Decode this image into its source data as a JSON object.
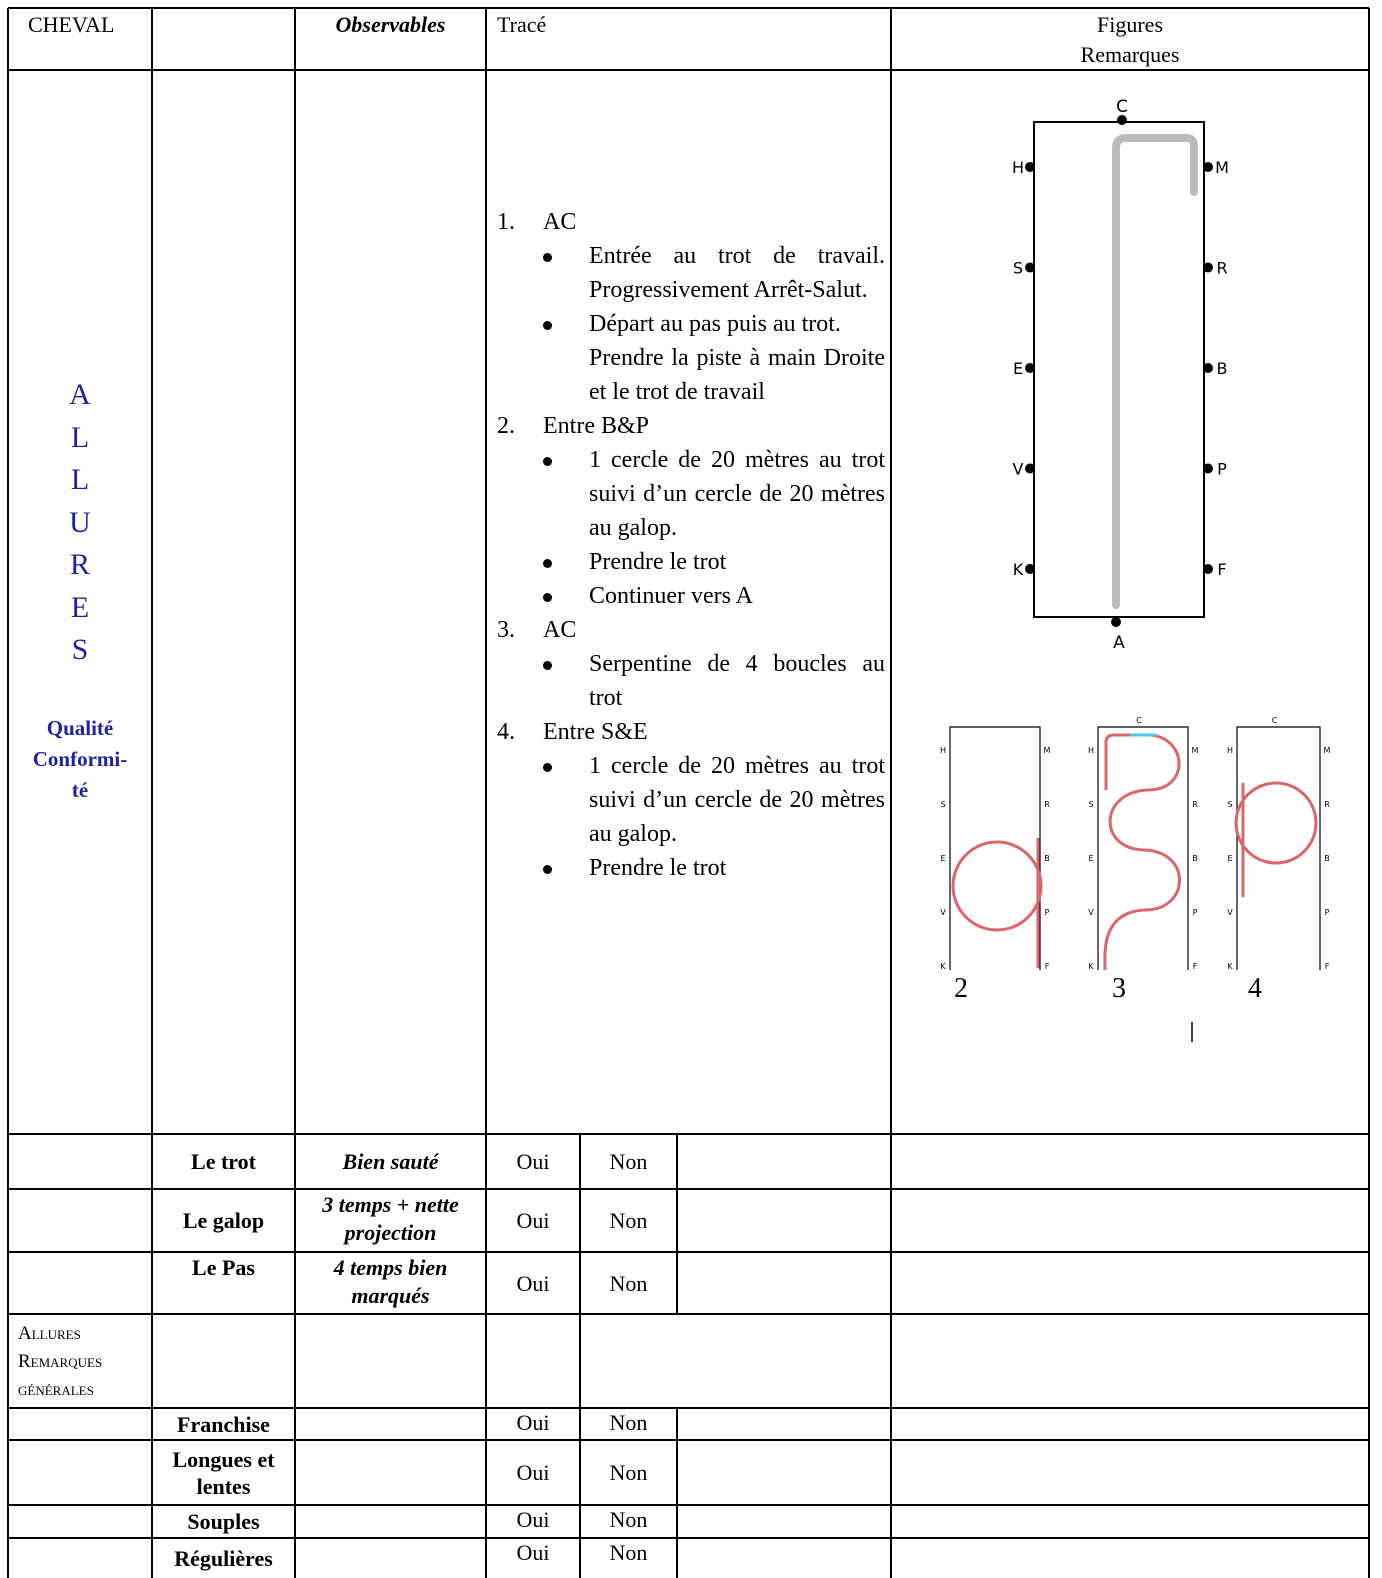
{
  "header": {
    "cheval": "CHEVAL",
    "observables": "Observables",
    "trace": "Tracé",
    "figures": "Figures",
    "remarques": "Remarques"
  },
  "side": {
    "letters": [
      "A",
      "L",
      "L",
      "U",
      "R",
      "E",
      "S"
    ],
    "subtitle": [
      "Qualité",
      "Conformi-",
      "té"
    ]
  },
  "instructions": [
    {
      "num": "1.",
      "title": "AC",
      "bullets": [
        "Entrée au trot de travail. Progressivement Arrêt-Salut.",
        "Départ au pas puis au trot.\nPrendre la piste à main Droite et le trot de travail"
      ]
    },
    {
      "num": "2.",
      "title": "Entre B&P",
      "bullets": [
        "1 cercle de 20 mètres au trot suivi d’un cercle de 20 mètres au galop.",
        "Prendre le trot",
        "Continuer vers A"
      ]
    },
    {
      "num": "3.",
      "title": "AC",
      "bullets": [
        "Serpentine de 4 boucles au trot"
      ]
    },
    {
      "num": "4.",
      "title": "Entre S&E",
      "bullets": [
        "1 cercle de 20 mètres au trot suivi d’un cercle de 20 mètres au galop.",
        "Prendre le trot"
      ]
    }
  ],
  "arena": {
    "top": "C",
    "bottom": "A",
    "left": [
      "H",
      "S",
      "E",
      "V",
      "K"
    ],
    "right": [
      "M",
      "R",
      "B",
      "P",
      "F"
    ]
  },
  "figures": [
    "2",
    "3",
    "4"
  ],
  "rows": [
    {
      "criterion": "Le trot",
      "observable": "Bien sauté",
      "yes": "Oui",
      "no": "Non"
    },
    {
      "criterion": "Le galop",
      "observable": "3 temps + nette projection",
      "yes": "Oui",
      "no": "Non"
    },
    {
      "criterion": "Le Pas",
      "observable": "4 temps bien marqués",
      "yes": "Oui",
      "no": "Non"
    },
    {
      "section": "Allures Remarques générales"
    },
    {
      "criterion": "Franchise",
      "yes": "Oui",
      "no": "Non"
    },
    {
      "criterion": "Longues et lentes",
      "yes": "Oui",
      "no": "Non"
    },
    {
      "criterion": "Souples",
      "yes": "Oui",
      "no": "Non"
    },
    {
      "criterion": "Régulières",
      "yes": "Oui",
      "no": "Non"
    }
  ]
}
